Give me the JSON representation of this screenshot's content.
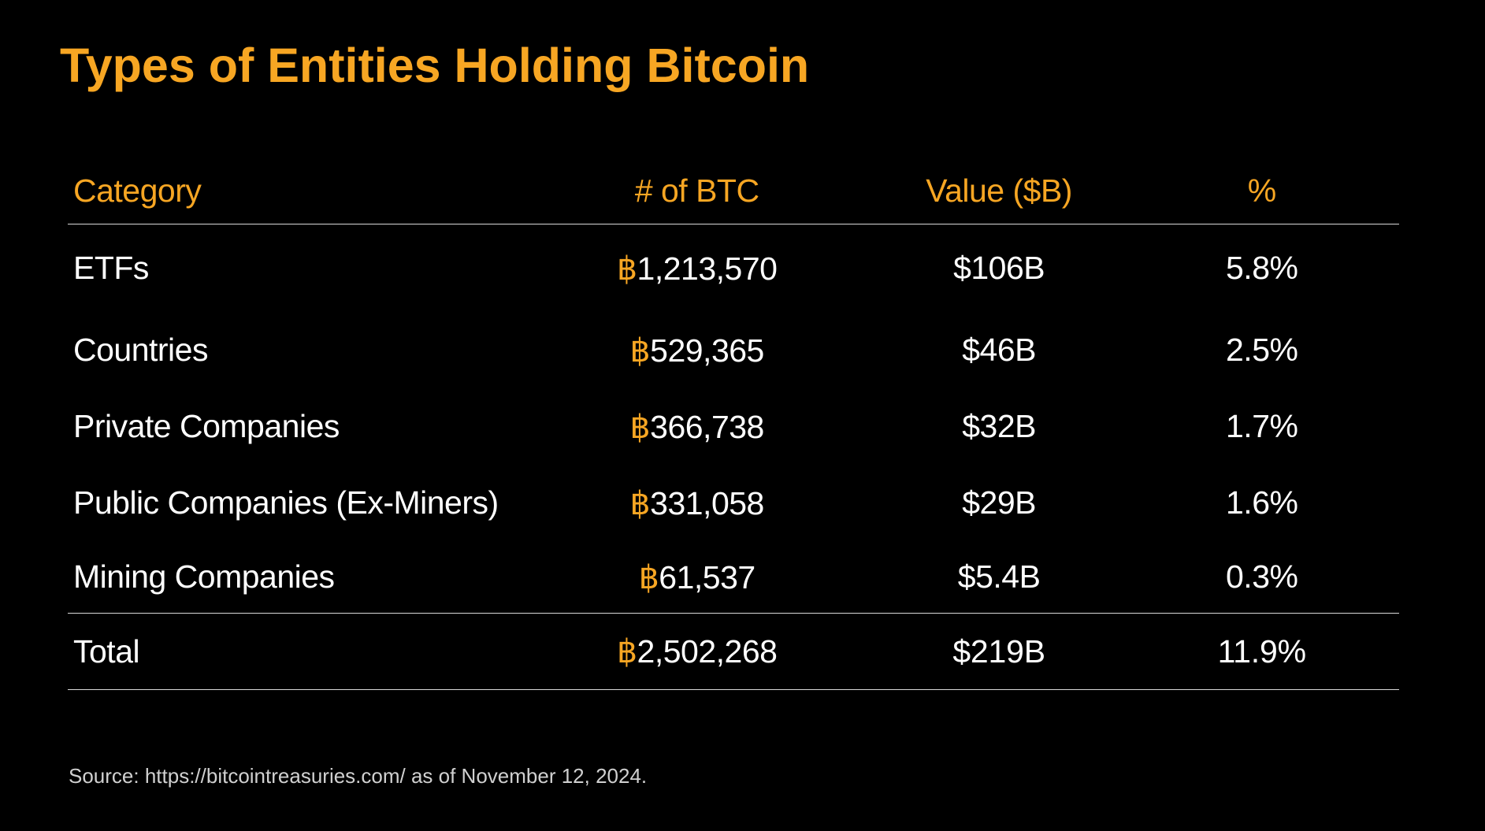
{
  "title": "Types of Entities Holding Bitcoin",
  "currency_symbol": "฿",
  "table": {
    "headers": {
      "category": "Category",
      "btc": "# of BTC",
      "value": "Value ($B)",
      "percent": "%"
    },
    "rows": [
      {
        "category": "ETFs",
        "btc": "1,213,570",
        "value": "$106B",
        "percent": "5.8%"
      },
      {
        "category": "Countries",
        "btc": "529,365",
        "value": "$46B",
        "percent": "2.5%"
      },
      {
        "category": "Private Companies",
        "btc": "366,738",
        "value": "$32B",
        "percent": "1.7%"
      },
      {
        "category": "Public Companies (Ex-Miners)",
        "btc": "331,058",
        "value": "$29B",
        "percent": "1.6%"
      },
      {
        "category": "Mining Companies",
        "btc": "61,537",
        "value": "$5.4B",
        "percent": "0.3%"
      }
    ],
    "total": {
      "category": "Total",
      "btc": "2,502,268",
      "value": "$219B",
      "percent": "11.9%"
    }
  },
  "source": "Source: https://bitcointreasuries.com/ as of November 12, 2024.",
  "colors": {
    "accent": "#F7A623",
    "background": "#000000",
    "text": "#FFFFFF",
    "rule": "#D9D9D9"
  }
}
